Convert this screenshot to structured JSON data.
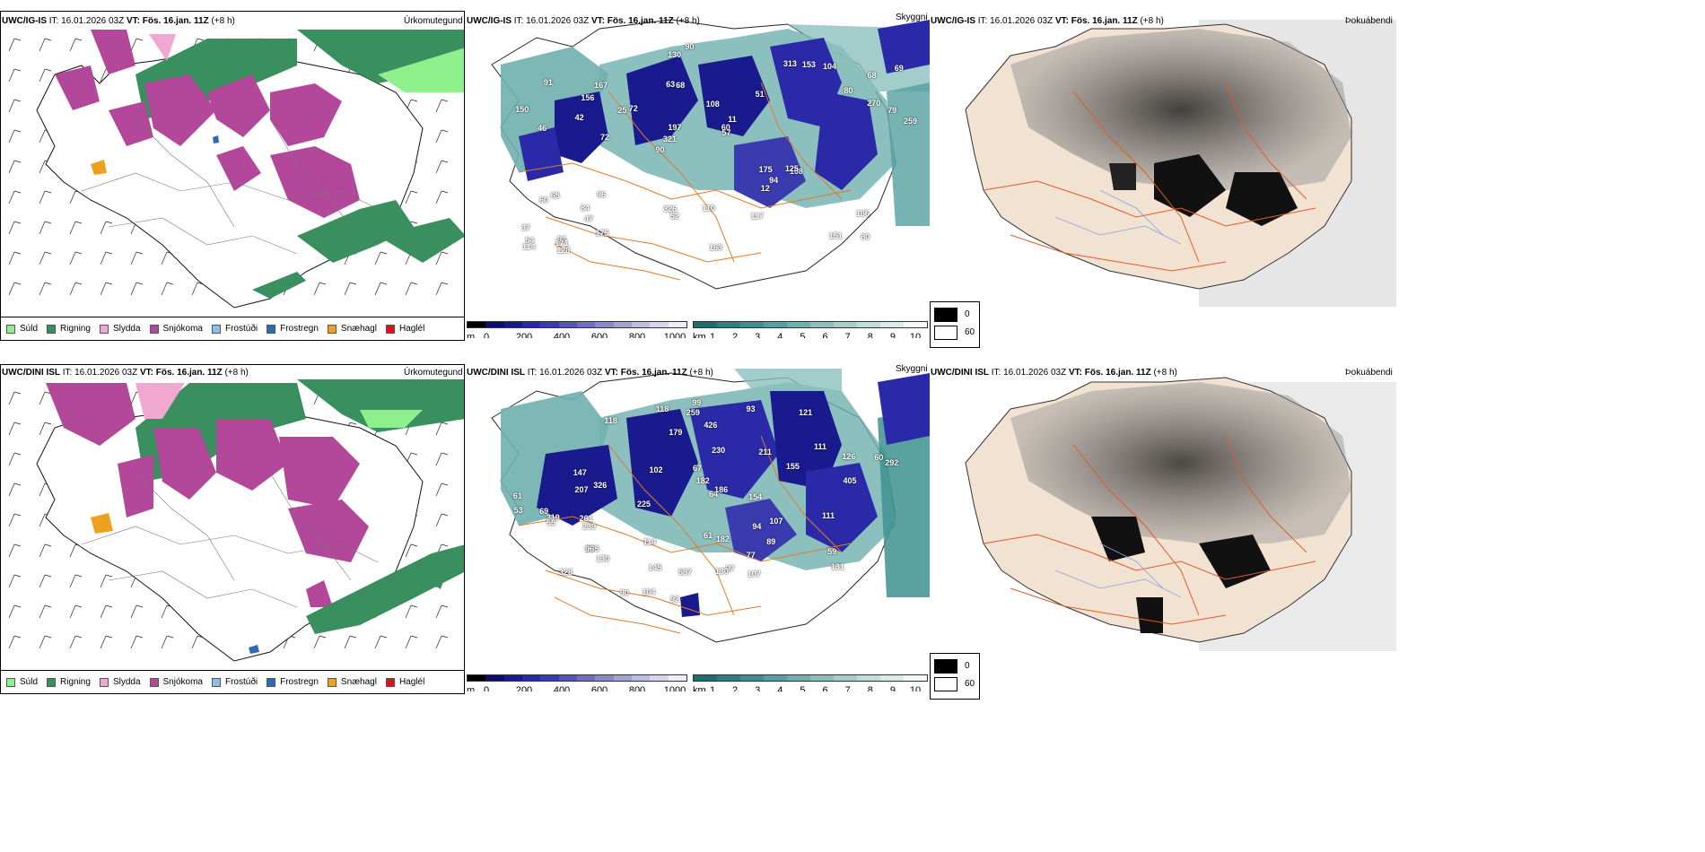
{
  "rows": [
    {
      "model": "UWC/IG-IS",
      "it_label": "IT:",
      "it_value": "16.01.2026 03Z",
      "vt_label": "VT:",
      "vt_value": "Fös. 16.jan. 11Z",
      "lead": "(+8 h)",
      "titles": {
        "precip": "Úrkomutegund",
        "visibility": "Skyggni",
        "fog": "Þokuábendi"
      },
      "visibility_numbers": [
        "80",
        "46",
        "68",
        "90",
        "51",
        "93",
        "63",
        "108",
        "65",
        "72",
        "37",
        "47",
        "68",
        "11",
        "108",
        "91",
        "130",
        "259",
        "175",
        "270",
        "321",
        "326",
        "197",
        "167",
        "313",
        "96",
        "151",
        "186",
        "125",
        "163",
        "25",
        "42",
        "12",
        "175",
        "79",
        "60",
        "54",
        "52",
        "57",
        "60",
        "80",
        "69",
        "94",
        "117",
        "84",
        "128",
        "114",
        "110",
        "104",
        "90",
        "72",
        "150",
        "156",
        "153",
        "171"
      ]
    },
    {
      "model": "UWC/DINI ISL",
      "it_label": "IT:",
      "it_value": "16.01.2026 03Z",
      "vt_label": "VT:",
      "vt_value": "Fös. 16.jan. 11Z",
      "lead": "(+8 h)",
      "titles": {
        "precip": "Úrkomutegund",
        "visibility": "Skyggni",
        "fog": "Þokuábendi"
      },
      "visibility_numbers": [
        "328",
        "121",
        "118",
        "111",
        "182",
        "326",
        "239",
        "205",
        "126",
        "155",
        "69",
        "99",
        "89",
        "64",
        "92",
        "118",
        "131",
        "61",
        "96",
        "104",
        "107",
        "259",
        "179",
        "186",
        "182",
        "145",
        "219",
        "93",
        "230",
        "107",
        "147",
        "130",
        "97",
        "61",
        "59",
        "55",
        "60",
        "154",
        "211",
        "111",
        "292",
        "426",
        "587",
        "261",
        "53",
        "207",
        "94",
        "130",
        "114",
        "77",
        "102",
        "90",
        "67",
        "405",
        "225"
      ]
    }
  ],
  "precip_legend": [
    {
      "label": "Súld",
      "color": "#8df08d"
    },
    {
      "label": "Rigning",
      "color": "#3a8f5f"
    },
    {
      "label": "Slydda",
      "color": "#f0a8d0"
    },
    {
      "label": "Snjókoma",
      "color": "#b3479a"
    },
    {
      "label": "Frostúði",
      "color": "#8cbde8"
    },
    {
      "label": "Frostregn",
      "color": "#2d6bb5"
    },
    {
      "label": "Snæhagl",
      "color": "#f0a020"
    },
    {
      "label": "Haglél",
      "color": "#e01010"
    }
  ],
  "cloud_base_scale": {
    "unit": "m",
    "ticks": [
      "0",
      "200",
      "400",
      "600",
      "800",
      "1000"
    ],
    "colors": [
      "#000000",
      "#0d0d6b",
      "#1a1a8f",
      "#2a2aa8",
      "#3b3bb0",
      "#5555b8",
      "#6f6fc2",
      "#8a8acb",
      "#a3a3d4",
      "#bdbde0",
      "#d6d6ec",
      "#eeeef8"
    ]
  },
  "visibility_scale": {
    "unit": "km",
    "ticks": [
      "1",
      "2",
      "3",
      "4",
      "5",
      "6",
      "7",
      "8",
      "9",
      "10"
    ],
    "colors": [
      "#1b6f6f",
      "#2b8080",
      "#3e9090",
      "#55a0a0",
      "#6fb0ae",
      "#8bc0bd",
      "#a6cfcc",
      "#c0dedb",
      "#dbecea",
      "#f4fafa"
    ]
  },
  "fog_key": {
    "dark_label": "0",
    "light_label": "60"
  }
}
